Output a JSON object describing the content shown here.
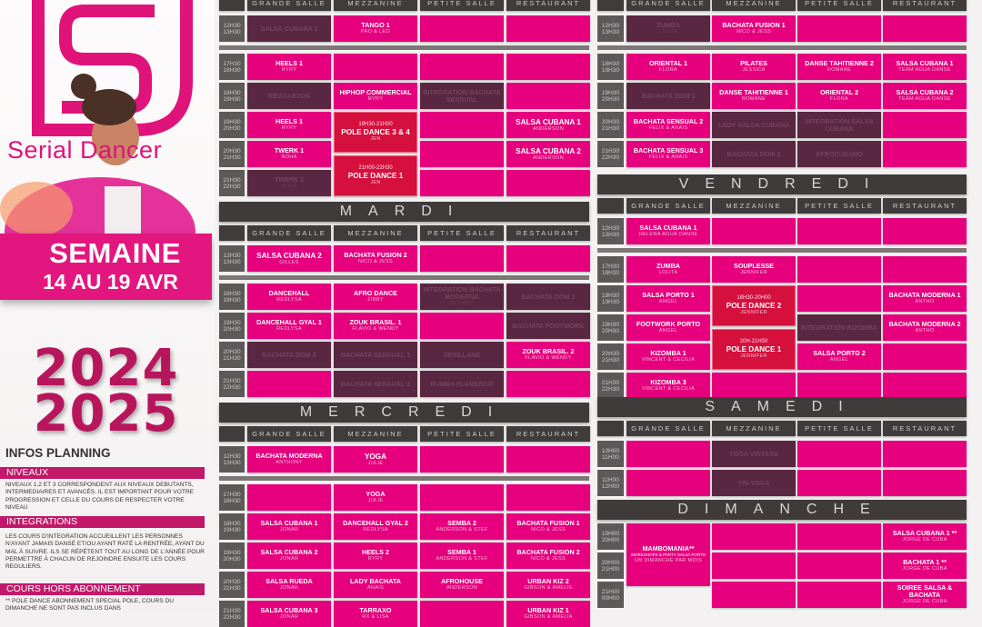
{
  "brand": "Serial Dancer",
  "banner": {
    "line1": "SEMAINE",
    "line2": "14 AU 19 AVR"
  },
  "season": {
    "year1": "2024",
    "year2": "2025"
  },
  "infos": {
    "title": "INFOS PLANNING",
    "sections": [
      {
        "heading": "NIVEAUX",
        "text": "NIVEAUX 1,2 ET 3 CORRESPONDENT AUX NIVEAUX DEBUTANTS, INTERMEDIAIRES ET AVANCÉS. IL EST IMPORTANT POUR VOTRE PROGRESSION ET CELLE DU COURS DE RESPECTER VOTRE NIVEAU"
      },
      {
        "heading": "INTEGRATIONS",
        "text": "LES COURS D'INTEGRATION ACCUEILLENT LES PERSONNES N'AYANT JAMAIS DANSÉ ET/OU AYANT RATÉ LA RENTRÉE, AYANT DU MAL À SUIVRE. ILS SE RÉPÈTENT TOUT AU LONG DE L'ANNÉE POUR PERMETTRE À CHACUN DE REJOINDRE ENSUITE LES COURS REGULIERS."
      },
      {
        "heading": "COURS HORS ABONNEMENT",
        "text": "** POLE DANCE ABONNEMENT SPECIAL POLE, COURS DU DIMANCHE NE SONT PAS INCLUS DANS"
      }
    ]
  },
  "rooms": [
    "GRANDE SALLE",
    "MEZZANINE",
    "PETITE SALLE",
    "RESTAURANT"
  ],
  "colors": {
    "active": "#e6007e",
    "cancelled": "#5a2742",
    "pole": "#d5103d",
    "header": "#3f3b3a"
  },
  "days": [
    {
      "title": "",
      "header": true,
      "blocks": [
        [
          {
            "time": [
              "12H30",
              "13H30"
            ],
            "cells": [
              {
                "title": "SALSA CUBANA 1",
                "status": "off"
              },
              {
                "title": "TANGO 1",
                "teacher": "PAO & LEO"
              },
              {},
              {}
            ]
          }
        ],
        [
          {
            "time": [
              "17H30",
              "18H30"
            ],
            "cells": [
              {
                "title": "HEELS 1",
                "teacher": "RYRY"
              },
              {},
              {},
              {}
            ]
          },
          {
            "time": [
              "18H30",
              "19H30"
            ],
            "cells": [
              {
                "title": "REGGAETON",
                "status": "off"
              },
              {
                "title": "HIPHOP COMMERCIAL",
                "teacher": "RYRY"
              },
              {
                "title": "INTEGRATION BACHATA SENSUAL",
                "status": "off"
              },
              {}
            ]
          },
          {
            "time": [
              "19H30",
              "20H30"
            ],
            "cells": [
              {
                "title": "HEELS 1",
                "teacher": "RYRY"
              },
              {
                "title": "POLE DANCE 3 & 4",
                "teacher": "JEN",
                "slot": "19H30-21H00",
                "status": "pole"
              },
              {},
              {
                "title": "SALSA CUBANA 1",
                "teacher": "ANDERSON",
                "big": true
              }
            ]
          },
          {
            "time": [
              "20H30",
              "21H30"
            ],
            "cells": [
              {
                "title": "TWERK 1",
                "teacher": "NOHA"
              },
              {
                "title": "POLE DANCE  1",
                "teacher": "JEN",
                "slot": "21H00-22H30",
                "status": "pole"
              },
              {},
              {
                "title": "SALSA CUBANA 2",
                "teacher": "ANDERSON",
                "big": true
              }
            ]
          },
          {
            "time": [
              "21H30",
              "22H30"
            ],
            "cells": [
              {
                "title": "TWERK 2",
                "teacher": "NOHA",
                "status": "off"
              },
              null,
              {},
              {}
            ]
          }
        ]
      ]
    },
    {
      "title": "MARDI",
      "header": true,
      "blocks": [
        [
          {
            "time": [
              "12H30",
              "13H30"
            ],
            "cells": [
              {
                "title": "SALSA CUBANA 2",
                "teacher": "GILLES",
                "big": true
              },
              {
                "title": "BACHATA  FUSION 2",
                "teacher": "NICO & JESS"
              },
              {},
              {}
            ]
          }
        ],
        [
          {
            "time": [
              "18H30",
              "19H30"
            ],
            "cells": [
              {
                "title": "DANCEHALL",
                "teacher": "REDLYSA"
              },
              {
                "title": "AFRO DANCE",
                "teacher": "ZIBBY"
              },
              {
                "title": "INTEGRATION BACHATA MODERNA",
                "teacher": "ANTHONY",
                "status": "off"
              },
              {
                "title": "BACHATA DOM 1",
                "status": "off"
              }
            ]
          },
          {
            "time": [
              "19H30",
              "20H30"
            ],
            "cells": [
              {
                "title": "DANCEHALL GYAL 1",
                "teacher": "REDLYSA"
              },
              {
                "title": "ZOUK BRASIL. 1",
                "teacher": "FLAVIO & WENDY"
              },
              {},
              {
                "title": "BACHATA FOOTWORK",
                "status": "off"
              }
            ]
          },
          {
            "time": [
              "20H30",
              "21H30"
            ],
            "cells": [
              {
                "title": "BACHATA DOM 2",
                "status": "off"
              },
              {
                "title": "BACHATA SENSUAL 1",
                "status": "off"
              },
              {
                "title": "SEVILLANE",
                "status": "off"
              },
              {
                "title": "ZOUK BRASIL. 2",
                "teacher": "FLAVIO & WENDY"
              }
            ]
          },
          {
            "time": [
              "21H30",
              "22H30"
            ],
            "cells": [
              {},
              {
                "title": "BACHATA SENSUAL 2",
                "status": "off"
              },
              {
                "title": "RUMBA FLAMENCO",
                "status": "off"
              },
              {}
            ]
          }
        ]
      ]
    },
    {
      "title": "MERCREDI",
      "header": true,
      "blocks": [
        [
          {
            "time": [
              "12H30",
              "13H30"
            ],
            "cells": [
              {
                "title": "BACHATA MODERNA",
                "teacher": "ANTHONY"
              },
              {
                "title": "YOGA",
                "teacher": "JULIE",
                "big": true
              },
              {},
              {}
            ]
          }
        ],
        [
          {
            "time": [
              "17H30",
              "18H30"
            ],
            "cells": [
              {},
              {
                "title": "YOGA",
                "teacher": "JULIE"
              },
              {},
              {}
            ]
          },
          {
            "time": [
              "18H30",
              "19H30"
            ],
            "cells": [
              {
                "title": "SALSA CUBANA 1",
                "teacher": "JONAR"
              },
              {
                "title": "DANCEHALL GYAL 2",
                "teacher": "REDLYSA"
              },
              {
                "title": "SEMBA 2",
                "teacher": "ANDERSON & STEF"
              },
              {
                "title": "BACHATA FUSION 1",
                "teacher": "NICO & JESS"
              }
            ]
          },
          {
            "time": [
              "19H30",
              "20H30"
            ],
            "cells": [
              {
                "title": "SALSA CUBANA 2",
                "teacher": "JONAR"
              },
              {
                "title": "HEELS 2",
                "teacher": "RYRY"
              },
              {
                "title": "SEMBA 1",
                "teacher": "ANDERSON & STEF"
              },
              {
                "title": "BACHATA FUSION 2",
                "teacher": "NICO & JESS"
              }
            ]
          },
          {
            "time": [
              "20H30",
              "21H30"
            ],
            "cells": [
              {
                "title": "SALSA RUEDA",
                "teacher": "JONAR"
              },
              {
                "title": "LADY BACHATA",
                "teacher": "ANAIS"
              },
              {
                "title": "AFROHOUSE",
                "teacher": "ANDERSON"
              },
              {
                "title": "URBAN KIZ 2",
                "teacher": "GIBSON & AMELIE"
              }
            ]
          },
          {
            "time": [
              "21H30",
              "22H30"
            ],
            "cells": [
              {
                "title": "SALSA CUBANA 3",
                "teacher": "JONAR"
              },
              {
                "title": "TARRAXO",
                "teacher": "RX & LISA"
              },
              {},
              {
                "title": "URBAN KIZ 1",
                "teacher": "GIBSON & AMELIA"
              }
            ]
          }
        ]
      ]
    },
    {
      "title": "",
      "header": true,
      "blocks": [
        [
          {
            "time": [
              "12H30",
              "13H30"
            ],
            "cells": [
              {
                "title": "ZUMBA",
                "teacher": "LOLITA",
                "status": "off"
              },
              {
                "title": "BACHATA FUSION 1",
                "teacher": "NICO & JESS"
              },
              {},
              {}
            ]
          }
        ],
        [
          {
            "time": [
              "18H30",
              "19H30"
            ],
            "cells": [
              {
                "title": "ORIENTAL  1",
                "teacher": "FLORA"
              },
              {
                "title": "PILATES",
                "teacher": "JESSICA"
              },
              {
                "title": "DANSE TAHITIENNE 2",
                "teacher": "ROMANE"
              },
              {
                "title": "SALSA CUBANA 1",
                "teacher": "TEAM AGUA DANSE"
              }
            ]
          },
          {
            "time": [
              "19H30",
              "20H30"
            ],
            "cells": [
              {
                "title": "BACHATA DOM 1",
                "status": "off"
              },
              {
                "title": "DANSE TAHITIENNE 1",
                "teacher": "ROMANE"
              },
              {
                "title": "ORIENTAL 2",
                "teacher": "FLORA"
              },
              {
                "title": "SALSA CUBANA 2",
                "teacher": "TEAM AGUA DANSE"
              }
            ]
          },
          {
            "time": [
              "20H30",
              "21H30"
            ],
            "cells": [
              {
                "title": "BACHATA SENSUAL 2",
                "teacher": "FELIX & ANAIS"
              },
              {
                "title": "LADY SALSA CUBANA",
                "status": "off"
              },
              {
                "title": "INTEGRATION SALSA CUBANA",
                "status": "off"
              },
              {}
            ]
          },
          {
            "time": [
              "21H30",
              "22H30"
            ],
            "cells": [
              {
                "title": "BACHATA SENSUAL 3",
                "teacher": "FELIX & ANAIS"
              },
              {
                "title": "BACHATA DOM 2",
                "status": "off"
              },
              {
                "title": "AFROCUBANO",
                "status": "off"
              },
              {}
            ]
          }
        ]
      ]
    },
    {
      "title": "VENDREDI",
      "header": true,
      "blocks": [
        [
          {
            "time": [
              "12H30",
              "13H30"
            ],
            "cells": [
              {
                "title": "SALSA CUBANA 1",
                "teacher": "HELENA AGUA DANSE"
              },
              {},
              {},
              {}
            ]
          }
        ],
        [
          {
            "time": [
              "17H30",
              "18H30"
            ],
            "cells": [
              {
                "title": "ZUMBA",
                "teacher": "LOLITA"
              },
              {
                "title": "SOUPLESSE",
                "teacher": "JENNIFER"
              },
              {},
              {}
            ]
          },
          {
            "time": [
              "18H30",
              "19H30"
            ],
            "cells": [
              {
                "title": "SALSA PORTO 1",
                "teacher": "ANGEL"
              },
              {
                "title": "POLE DANCE 2",
                "teacher": "JENNIFER",
                "slot": "18H30-20H00",
                "status": "pole"
              },
              {},
              {
                "title": "BACHATA MODERNA 1",
                "teacher": "ANTHO"
              }
            ]
          },
          {
            "time": [
              "19H30",
              "20H30"
            ],
            "cells": [
              {
                "title": "FOOTWORK PORTO",
                "teacher": "ANGEL"
              },
              {
                "title": "POLE DANCE 1",
                "teacher": "JENNIFER",
                "slot": "20H-21H30",
                "status": "pole"
              },
              {
                "title": "INTEGRATION KIZOMBA",
                "status": "off"
              },
              {
                "title": "BACHATA MODERNA 2",
                "teacher": "ANTHO"
              }
            ]
          },
          {
            "time": [
              "20H30",
              "21H30"
            ],
            "cells": [
              {
                "title": "KIZOMBA 1",
                "teacher": "VINCENT & CECILIA"
              },
              null,
              {
                "title": "SALSA PORTO 2",
                "teacher": "ANGEL"
              },
              {}
            ]
          },
          {
            "time": [
              "21H30",
              "22H30"
            ],
            "cells": [
              {
                "title": "KIZOMBA 3",
                "teacher": "VINCENT & CECILIA"
              },
              {},
              {},
              {}
            ]
          }
        ]
      ]
    },
    {
      "title": "SAMEDI",
      "header": true,
      "blocks": [
        [
          {
            "time": [
              "10H00",
              "11H00"
            ],
            "cells": [
              {},
              {
                "title": "YOGA VINYASA",
                "status": "off"
              },
              {},
              {}
            ]
          },
          {
            "time": [
              "11H00",
              "12H00"
            ],
            "cells": [
              {},
              {
                "title": "YIN YOGA",
                "status": "off"
              },
              {},
              {}
            ]
          }
        ]
      ]
    },
    {
      "title": "DIMANCHE",
      "header": false,
      "blocks": [
        [
          {
            "time": [
              "19H00",
              "20H00"
            ],
            "cells": [
              {
                "title": "MAMBOMANIA**",
                "sub": "WORKSHOPS & PARTY SALSA PORTO",
                "teacher": "UN DIMANCHE PAR MOIS",
                "rowspan": 2
              },
              {},
              {},
              {
                "title": "SALSA CUBANA 1 **",
                "teacher": "JORGE DE CUBA"
              }
            ]
          },
          {
            "time": [
              "20H00",
              "21H00"
            ],
            "cells": [
              null,
              {},
              {},
              {
                "title": "BACHATA 1 **",
                "teacher": "JORGE DE CUBA"
              }
            ]
          },
          {
            "time": [
              "21H00",
              "00H00"
            ],
            "cells": [
              {
                "status": "none"
              },
              {},
              {},
              {
                "title": "SOIREE SALSA & BACHATA",
                "teacher": "JORGE DE CUBA"
              }
            ]
          }
        ]
      ]
    }
  ]
}
